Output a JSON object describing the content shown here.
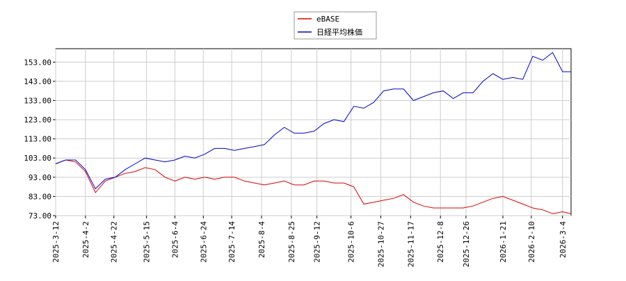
{
  "chart_data": {
    "type": "line",
    "x": [
      "2025-03-12",
      "2025-03-19",
      "2025-03-26",
      "2025-04-02",
      "2025-04-09",
      "2025-04-16",
      "2025-04-23",
      "2025-04-30",
      "2025-05-07",
      "2025-05-14",
      "2025-05-21",
      "2025-05-28",
      "2025-06-04",
      "2025-06-11",
      "2025-06-18",
      "2025-06-25",
      "2025-07-02",
      "2025-07-09",
      "2025-07-16",
      "2025-07-23",
      "2025-07-30",
      "2025-08-06",
      "2025-08-13",
      "2025-08-20",
      "2025-08-27",
      "2025-09-03",
      "2025-09-10",
      "2025-09-17",
      "2025-09-24",
      "2025-10-01",
      "2025-10-08",
      "2025-10-15",
      "2025-10-22",
      "2025-10-29",
      "2025-11-05",
      "2025-11-12",
      "2025-11-19",
      "2025-11-26",
      "2025-12-03",
      "2025-12-10",
      "2025-12-17",
      "2025-12-24",
      "2025-12-31",
      "2026-01-07",
      "2026-01-14",
      "2026-01-21",
      "2026-01-28",
      "2026-02-04",
      "2026-02-11",
      "2026-02-18",
      "2026-02-25",
      "2026-03-04",
      "2026-03-10"
    ],
    "series": [
      {
        "name": "eBASE",
        "color": "#dd0000",
        "values": [
          100,
          102,
          101,
          96,
          85,
          91,
          93,
          95,
          96,
          98,
          97,
          93,
          91,
          93,
          92,
          93,
          92,
          93,
          93,
          91,
          90,
          89,
          90,
          91,
          89,
          89,
          91,
          91,
          90,
          90,
          88,
          79,
          80,
          81,
          82,
          84,
          80,
          78,
          77,
          77,
          77,
          77,
          78,
          80,
          82,
          83,
          81,
          79,
          77,
          76,
          74,
          75,
          74
        ]
      },
      {
        "name": "日経平均株価",
        "color": "#0000cc",
        "values": [
          100,
          102,
          102,
          97,
          87,
          92,
          93,
          97,
          100,
          103,
          102,
          101,
          102,
          104,
          103,
          105,
          108,
          108,
          107,
          108,
          109,
          110,
          115,
          119,
          116,
          116,
          117,
          121,
          123,
          122,
          130,
          129,
          132,
          138,
          139,
          139,
          133,
          135,
          137,
          138,
          134,
          137,
          137,
          143,
          147,
          144,
          145,
          144,
          156,
          154,
          158,
          148,
          148
        ]
      }
    ],
    "xlim": [
      "2025-03-12",
      "2026-03-10"
    ],
    "xticks": [
      "2025-3-12",
      "2025-4-2",
      "2025-4-22",
      "2025-5-15",
      "2025-6-4",
      "2025-6-24",
      "2025-7-14",
      "2025-8-4",
      "2025-8-25",
      "2025-9-12",
      "2025-10-6",
      "2025-10-27",
      "2025-11-17",
      "2025-12-8",
      "2025-12-26",
      "2026-1-21",
      "2026-2-10",
      "2026-3-4"
    ],
    "ylim": [
      73,
      160
    ],
    "yticks": [
      {
        "value": 73,
        "label": "73.00"
      },
      {
        "value": 83,
        "label": "83.00"
      },
      {
        "value": 93,
        "label": "93.00"
      },
      {
        "value": 103,
        "label": "103.00"
      },
      {
        "value": 113,
        "label": "113.00"
      },
      {
        "value": 123,
        "label": "123.00"
      },
      {
        "value": 133,
        "label": "133.00"
      },
      {
        "value": 143,
        "label": "143.00"
      },
      {
        "value": 153,
        "label": "153.00"
      }
    ],
    "grid": true
  }
}
